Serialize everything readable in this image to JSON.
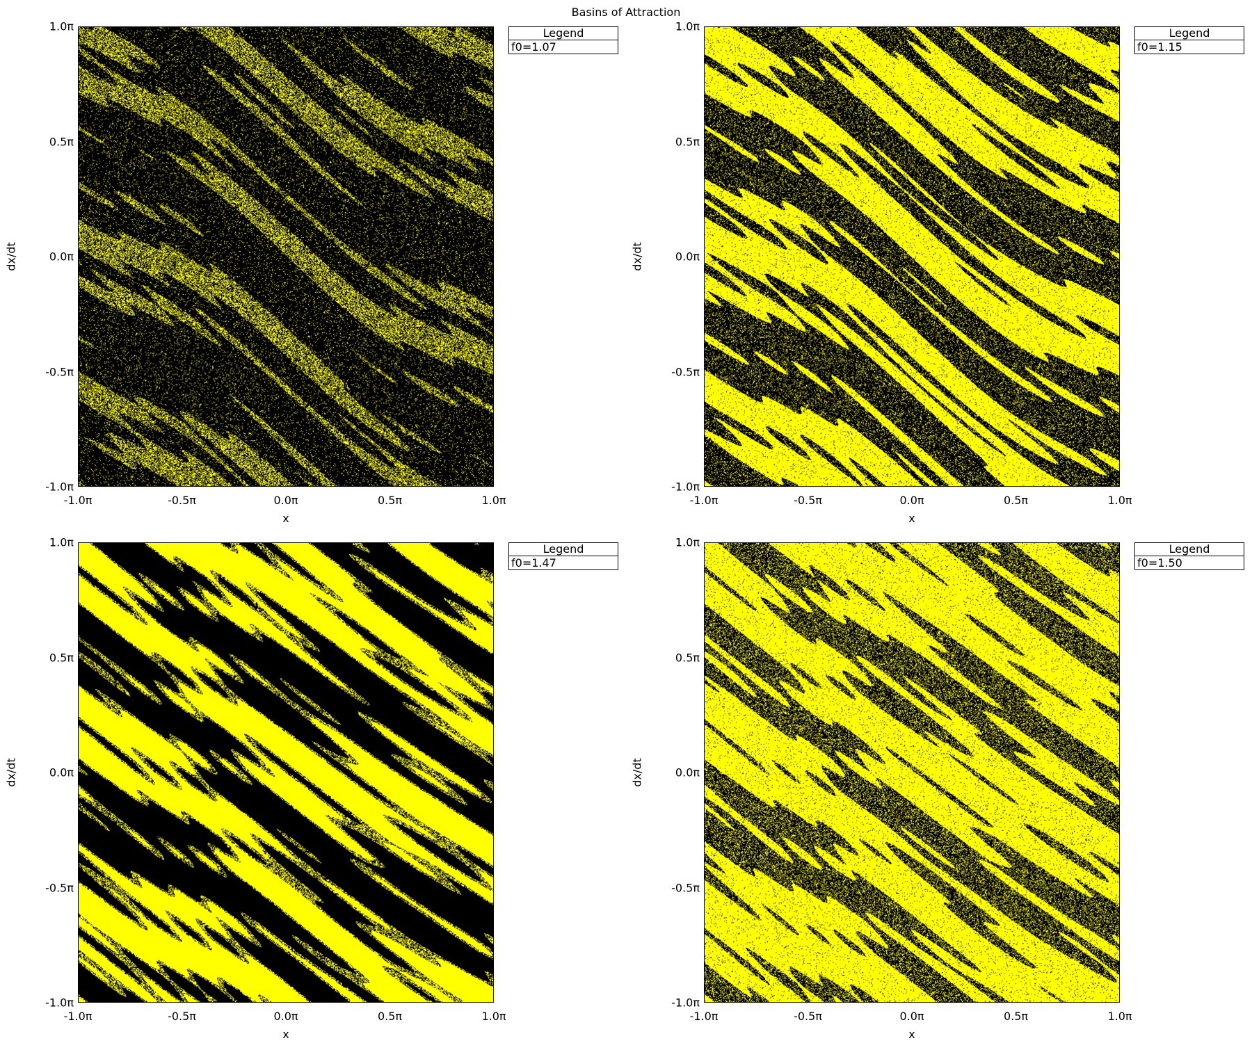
{
  "title": "Basins of Attraction",
  "colors": {
    "basin_a": "#000000",
    "basin_b": "#ffff00",
    "background": "#ffffff"
  },
  "chart_data": [
    {
      "type": "heatmap",
      "xlabel": "x",
      "ylabel": "dx/dt",
      "xlim": [
        "-1.0π",
        "1.0π"
      ],
      "ylim": [
        "-1.0π",
        "1.0π"
      ],
      "xticks": [
        "-1.0π",
        "-0.5π",
        "0.0π",
        "0.5π",
        "1.0π"
      ],
      "yticks": [
        "1.0π",
        "0.5π",
        "0.0π",
        "-0.5π",
        "-1.0π"
      ],
      "legend_title": "Legend",
      "legend_entry": "f0=1.07",
      "legend_position": "outside-right",
      "f0": 1.07
    },
    {
      "type": "heatmap",
      "xlabel": "x",
      "ylabel": "dx/dt",
      "xlim": [
        "-1.0π",
        "1.0π"
      ],
      "ylim": [
        "-1.0π",
        "1.0π"
      ],
      "xticks": [
        "-1.0π",
        "-0.5π",
        "0.0π",
        "0.5π",
        "1.0π"
      ],
      "yticks": [
        "1.0π",
        "0.5π",
        "0.0π",
        "-0.5π",
        "-1.0π"
      ],
      "legend_title": "Legend",
      "legend_entry": "f0=1.15",
      "legend_position": "outside-right",
      "f0": 1.15
    },
    {
      "type": "heatmap",
      "xlabel": "x",
      "ylabel": "dx/dt",
      "xlim": [
        "-1.0π",
        "1.0π"
      ],
      "ylim": [
        "-1.0π",
        "1.0π"
      ],
      "xticks": [
        "-1.0π",
        "-0.5π",
        "0.0π",
        "0.5π",
        "1.0π"
      ],
      "yticks": [
        "1.0π",
        "0.5π",
        "0.0π",
        "-0.5π",
        "-1.0π"
      ],
      "legend_title": "Legend",
      "legend_entry": "f0=1.47",
      "legend_position": "outside-right",
      "f0": 1.47
    },
    {
      "type": "heatmap",
      "xlabel": "x",
      "ylabel": "dx/dt",
      "xlim": [
        "-1.0π",
        "1.0π"
      ],
      "ylim": [
        "-1.0π",
        "1.0π"
      ],
      "xticks": [
        "-1.0π",
        "-0.5π",
        "0.0π",
        "0.5π",
        "1.0π"
      ],
      "yticks": [
        "1.0π",
        "0.5π",
        "0.0π",
        "-0.5π",
        "-1.0π"
      ],
      "legend_title": "Legend",
      "legend_entry": "f0=1.50",
      "legend_position": "outside-right",
      "f0": 1.5
    }
  ]
}
